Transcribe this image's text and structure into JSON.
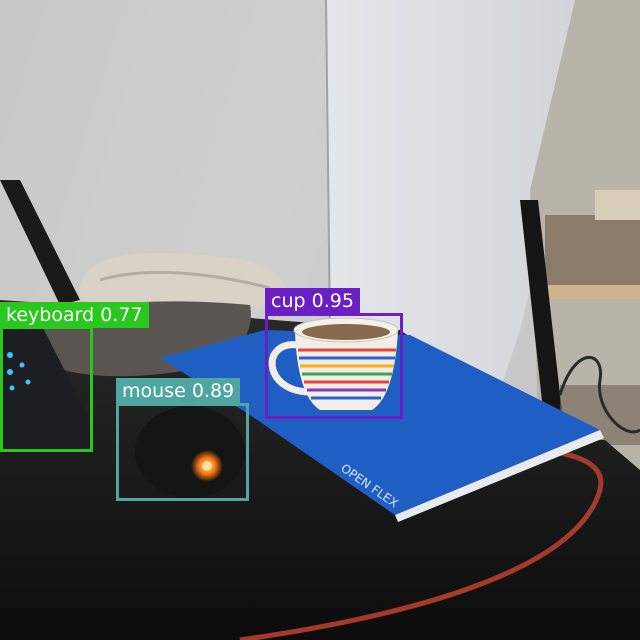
{
  "detections": [
    {
      "label": "keyboard",
      "score": "0.77",
      "color": "#28c81e"
    },
    {
      "label": "mouse",
      "score": "0.89",
      "color": "#4fa6a0"
    },
    {
      "label": "cup",
      "score": "0.95",
      "color": "#6a1fc4"
    }
  ],
  "scene_objects": [
    "wall",
    "open-door",
    "shelf",
    "towel",
    "keyboard",
    "mouse",
    "cup",
    "notebook",
    "desk-mat",
    "desk",
    "cable"
  ],
  "colors": {
    "wall": "#dcdcdc",
    "desk": "#121212",
    "notebook": "#1f5fc4",
    "mat_edge": "#a33a2a"
  }
}
